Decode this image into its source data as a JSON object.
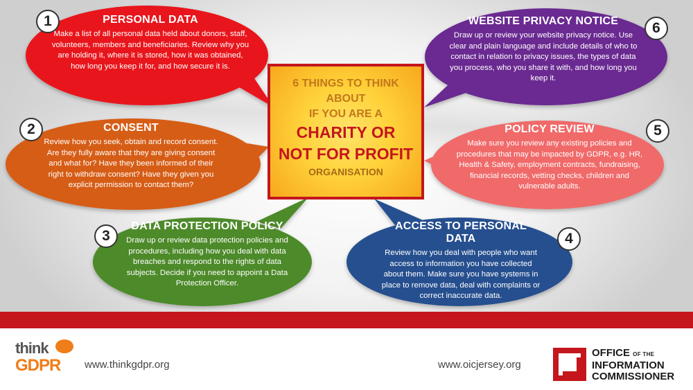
{
  "center": {
    "line1": "6 THINGS TO THINK",
    "line2": "ABOUT",
    "line3": "IF YOU ARE A",
    "big1": "CHARITY OR",
    "big2": "NOT FOR PROFIT",
    "line4": "ORGANISATION"
  },
  "items": [
    {
      "number": "1",
      "title": "PERSONAL DATA",
      "body": "Make a list of all personal data held about donors, staff, volunteers, members and beneficiaries. Review why you are holding it, where it is stored, how it was obtained, how long you keep it for, and how secure it is.",
      "color": "#e8141c"
    },
    {
      "number": "2",
      "title": "CONSENT",
      "body": "Review how you seek, obtain and record consent. Are they fully aware that they are giving consent and what for? Have they been informed of their right to withdraw consent? Have they given you explicit permission to contact them?",
      "color": "#d65d16"
    },
    {
      "number": "3",
      "title": "DATA PROTECTION POLICY",
      "body": "Draw up or review data protection policies and procedures, including how you deal with data breaches and respond to the rights of data subjects. Decide if you need to appoint a Data Protection Officer.",
      "color": "#4e8a2a"
    },
    {
      "number": "4",
      "title": "ACCESS TO PERSONAL DATA",
      "body": "Review how you deal with people who want access to information you have collected about them. Make sure you have systems in place to remove data, deal with complaints or correct inaccurate data.",
      "color": "#27508f"
    },
    {
      "number": "5",
      "title": "POLICY REVIEW",
      "body": "Make sure you review any existing policies and procedures that may be impacted by GDPR, e.g. HR, Health & Safety, employment contracts, fundraising, financial records, vetting checks, children and vulnerable adults.",
      "color": "#f06a6a"
    },
    {
      "number": "6",
      "title": "WEBSITE PRIVACY NOTICE",
      "body": "Draw up or review your website privacy notice. Use clear and plain language and include details of who to contact in relation to privacy issues, the types of data you process, who you share it with, and how long you keep it.",
      "color": "#6a2a91"
    }
  ],
  "footer": {
    "think_logo_line1": "think",
    "think_logo_line2": "GDPR",
    "url_left": "www.thinkgdpr.org",
    "url_right": "www.oicjersey.org",
    "oic_line1": "OFFICE",
    "oic_line1_sup": "OF THE",
    "oic_line2": "INFORMATION",
    "oic_line3": "COMMISSIONER"
  }
}
